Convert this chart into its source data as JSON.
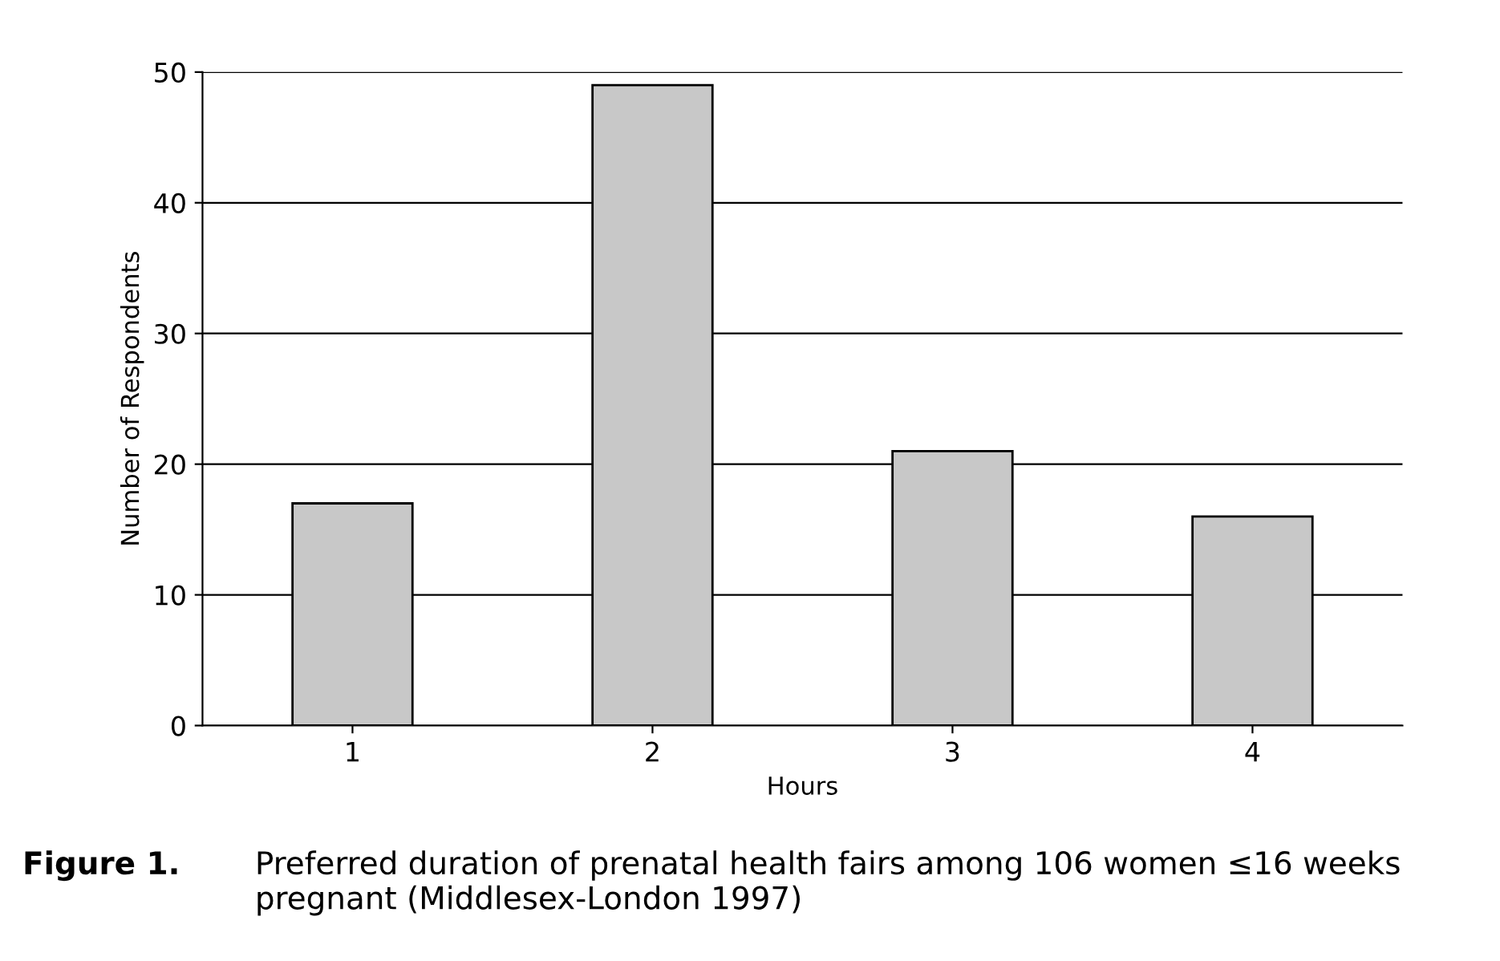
{
  "chart_data": {
    "type": "bar",
    "xlabel": "Hours",
    "ylabel": "Number of Respondents",
    "categories": [
      "1",
      "2",
      "3",
      "4"
    ],
    "values": [
      17,
      49,
      21,
      16
    ],
    "color": "#c8c8c8",
    "ylim": [
      0,
      50
    ],
    "yticks": [
      0,
      10,
      20,
      30,
      40,
      50
    ],
    "grid": "y",
    "annotations": [
      "Figure 1.",
      "Preferred duration of prenatal health fairs among 106 women ≤16 weeks pregnant (Middlesex-London 1997)"
    ]
  }
}
